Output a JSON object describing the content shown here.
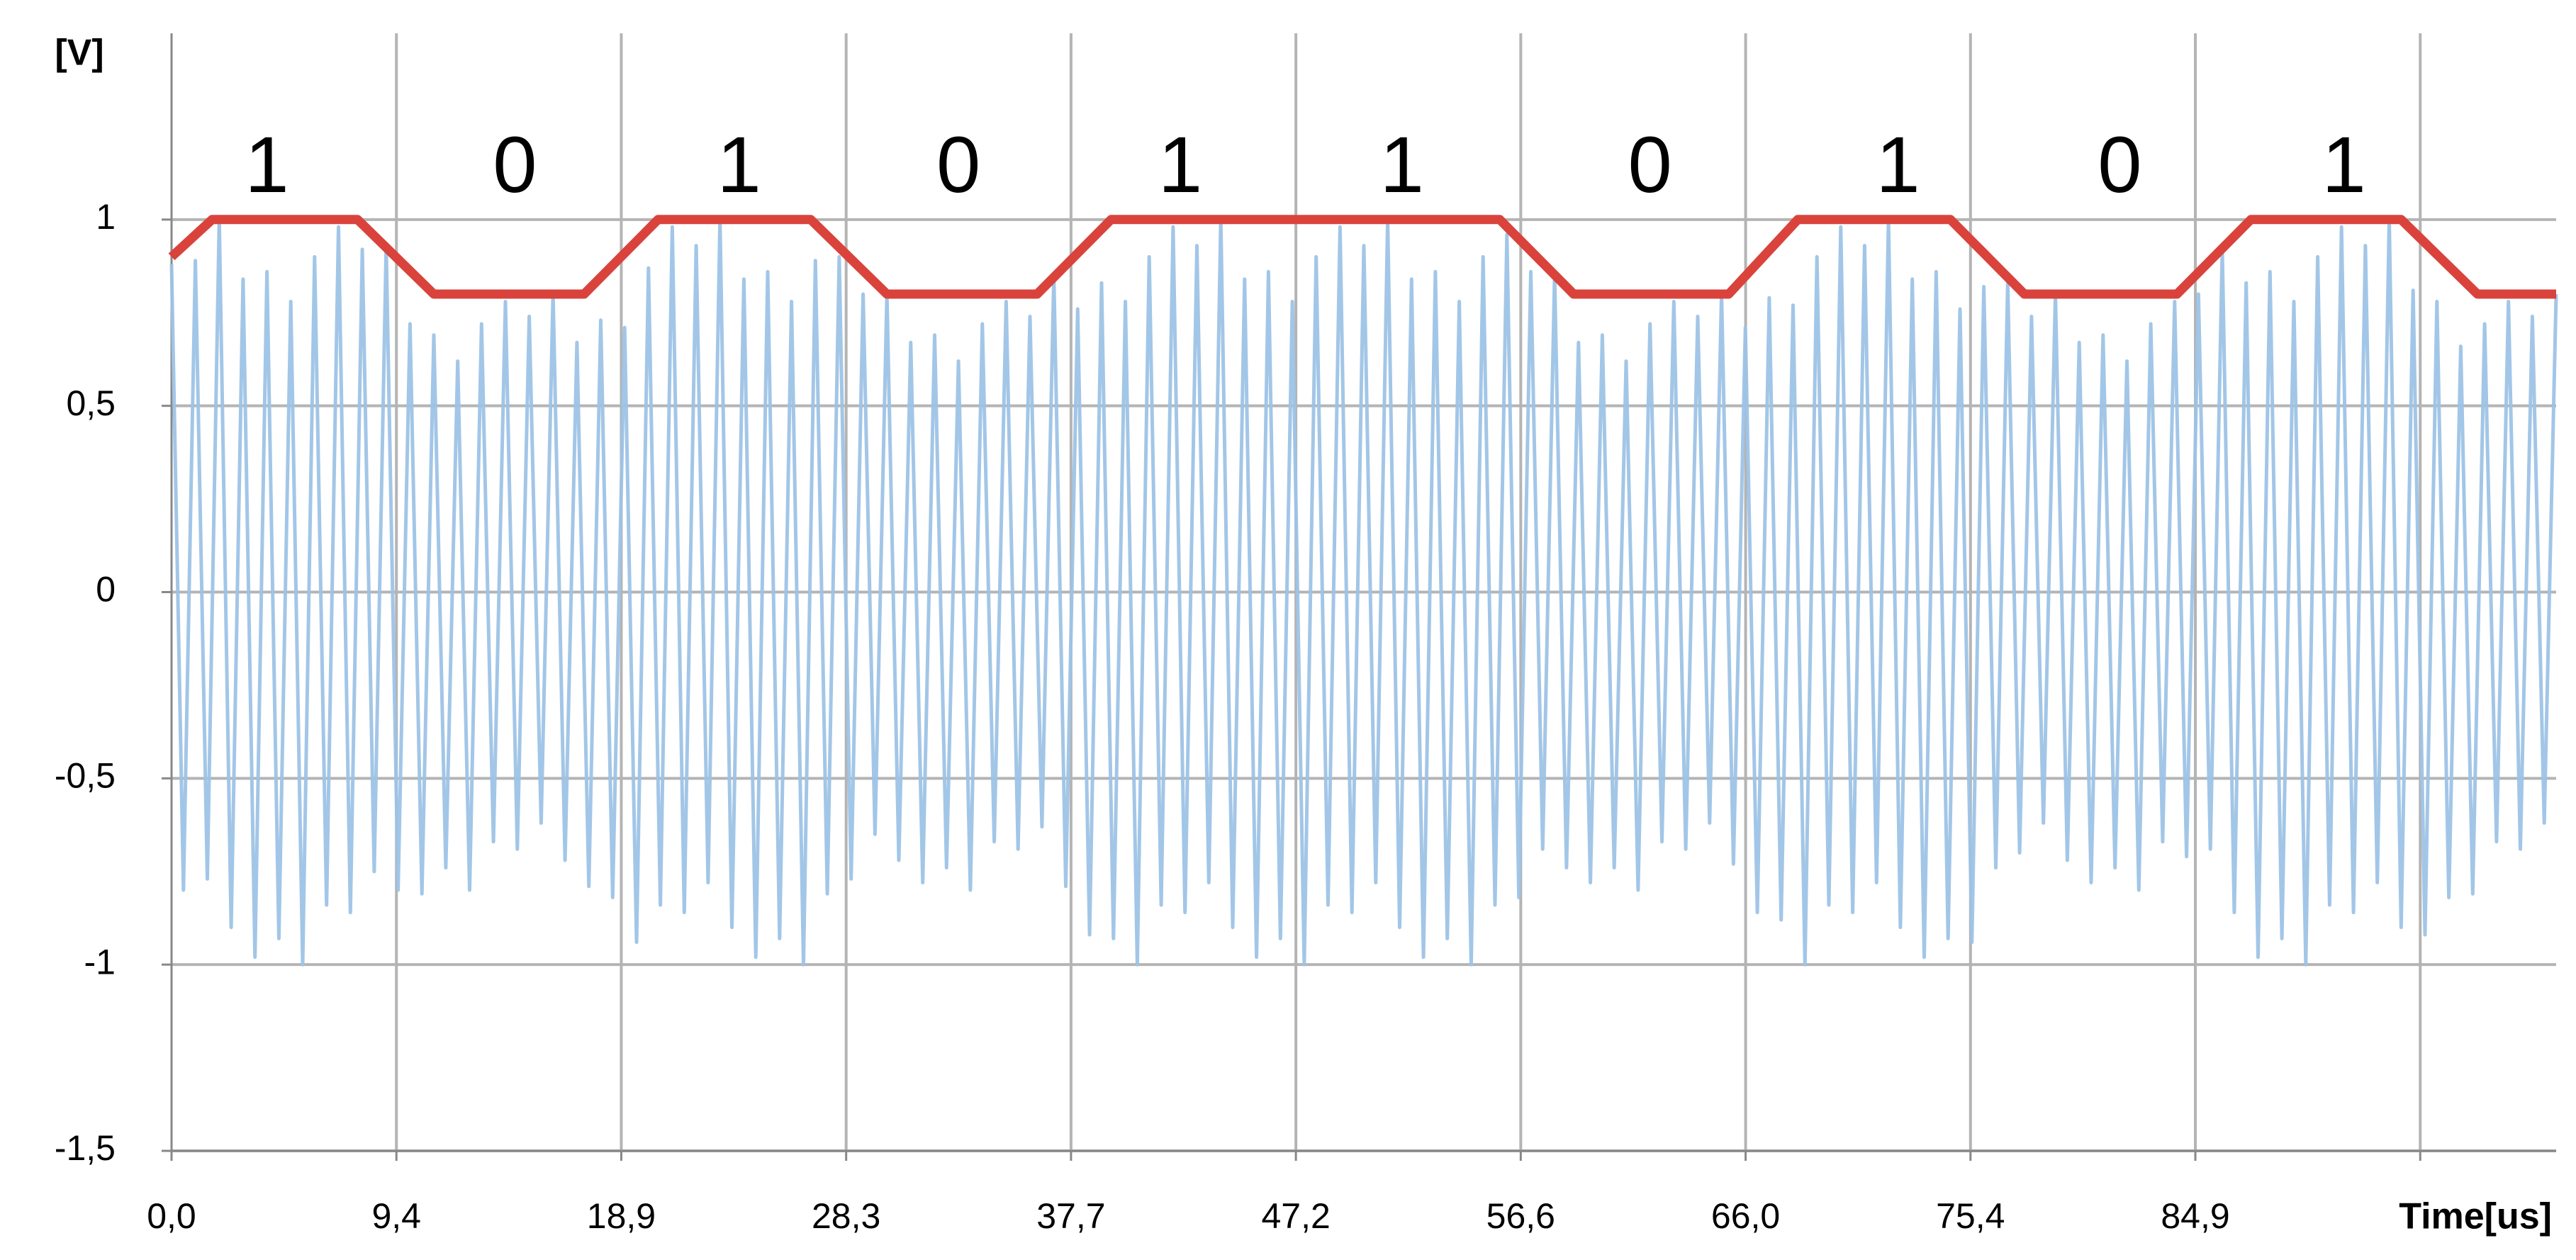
{
  "chart_data": {
    "type": "line",
    "ylabel": "[V]",
    "xlabel": "Time[us]",
    "xlim": [
      0,
      100
    ],
    "ylim": [
      -1.5,
      1.5
    ],
    "grid": true,
    "xticks": [
      {
        "value": 0,
        "label": "0,0"
      },
      {
        "value": 9.43,
        "label": "9,4"
      },
      {
        "value": 18.86,
        "label": "18,9"
      },
      {
        "value": 28.29,
        "label": "28,3"
      },
      {
        "value": 37.72,
        "label": "37,7"
      },
      {
        "value": 47.15,
        "label": "47,2"
      },
      {
        "value": 56.58,
        "label": "56,6"
      },
      {
        "value": 66.01,
        "label": "66,0"
      },
      {
        "value": 75.44,
        "label": "75,4"
      },
      {
        "value": 84.87,
        "label": "84,9"
      },
      {
        "value": 94.3,
        "label": null
      }
    ],
    "yticks": [
      {
        "value": -1.5,
        "label": "-1,5"
      },
      -1,
      {
        "value": -0.5,
        "label": "-0,5"
      },
      0,
      {
        "value": 0.5,
        "label": "0,5"
      },
      1
    ],
    "series": [
      {
        "color": "#9dc3e6",
        "x": [
          0,
          0.5,
          1,
          1.5,
          2,
          2.5,
          3,
          3.5,
          4,
          4.5,
          5,
          5.5,
          6,
          6.5,
          7,
          7.5,
          8,
          8.5,
          9,
          9.5,
          10,
          10.5,
          11,
          11.5,
          12,
          12.5,
          13,
          13.5,
          14,
          14.5,
          15,
          15.5,
          16,
          16.5,
          17,
          17.5,
          18,
          18.5,
          19,
          19.5,
          20,
          20.5,
          21,
          21.5,
          22,
          22.5,
          23,
          23.5,
          24,
          24.5,
          25,
          25.5,
          26,
          26.5,
          27,
          27.5,
          28,
          28.5,
          29,
          29.5,
          30,
          30.5,
          31,
          31.5,
          32,
          32.5,
          33,
          33.5,
          34,
          34.5,
          35,
          35.5,
          36,
          36.5,
          37,
          37.5,
          38,
          38.5,
          39,
          39.5,
          40,
          40.5,
          41,
          41.5,
          42,
          42.5,
          43,
          43.5,
          44,
          44.5,
          45,
          45.5,
          46,
          46.5,
          47,
          47.5,
          48,
          48.5,
          49,
          49.5,
          50,
          50.5,
          51,
          51.5,
          52,
          52.5,
          53,
          53.5,
          54,
          54.5,
          55,
          55.5,
          56,
          56.5,
          57,
          57.5,
          58,
          58.5,
          59,
          59.5,
          60,
          60.5,
          61,
          61.5,
          62,
          62.5,
          63,
          63.5,
          64,
          64.5,
          65,
          65.5,
          66,
          66.5,
          67,
          67.5,
          68,
          68.5,
          69,
          69.5,
          70,
          70.5,
          71,
          71.5,
          72,
          72.5,
          73,
          73.5,
          74,
          74.5,
          75,
          75.5,
          76,
          76.5,
          77,
          77.5,
          78,
          78.5,
          79,
          79.5,
          80,
          80.5,
          81,
          81.5,
          82,
          82.5,
          83,
          83.5,
          84,
          84.5,
          85,
          85.5,
          86,
          86.5,
          87,
          87.5,
          88,
          88.5,
          89,
          89.5,
          90,
          90.5,
          91,
          91.5,
          92,
          92.5,
          93,
          93.5,
          94,
          94.5,
          95,
          95.5,
          96,
          96.5,
          97,
          97.5,
          98,
          98.5,
          99,
          99.5,
          100
        ],
        "values": [
          0.88,
          -0.8,
          0.89,
          -0.77,
          1,
          -0.9,
          0.84,
          -0.98,
          0.86,
          -0.93,
          0.78,
          -1,
          0.9,
          -0.84,
          0.98,
          -0.86,
          0.92,
          -0.75,
          0.93,
          -0.8,
          0.72,
          -0.81,
          0.69,
          -0.74,
          0.62,
          -0.8,
          0.72,
          -0.67,
          0.78,
          -0.69,
          0.74,
          -0.62,
          0.8,
          -0.72,
          0.67,
          -0.79,
          0.73,
          -0.82,
          0.71,
          -0.94,
          0.87,
          -0.84,
          0.98,
          -0.86,
          0.93,
          -0.78,
          1,
          -0.9,
          0.84,
          -0.98,
          0.86,
          -0.93,
          0.78,
          -1,
          0.89,
          -0.81,
          0.9,
          -0.77,
          0.8,
          -0.65,
          0.8,
          -0.72,
          0.67,
          -0.78,
          0.69,
          -0.74,
          0.62,
          -0.8,
          0.72,
          -0.67,
          0.78,
          -0.69,
          0.74,
          -0.63,
          0.85,
          -0.79,
          0.76,
          -0.92,
          0.83,
          -0.93,
          0.78,
          -1,
          0.9,
          -0.84,
          0.98,
          -0.86,
          0.93,
          -0.78,
          1,
          -0.9,
          0.84,
          -0.98,
          0.86,
          -0.93,
          0.78,
          -1,
          0.9,
          -0.84,
          0.98,
          -0.86,
          0.93,
          -0.78,
          1,
          -0.9,
          0.84,
          -0.98,
          0.86,
          -0.93,
          0.78,
          -1,
          0.9,
          -0.84,
          0.96,
          -0.82,
          0.86,
          -0.69,
          0.85,
          -0.74,
          0.67,
          -0.78,
          0.69,
          -0.74,
          0.62,
          -0.8,
          0.72,
          -0.67,
          0.78,
          -0.69,
          0.74,
          -0.62,
          0.8,
          -0.73,
          0.71,
          -0.86,
          0.79,
          -0.88,
          0.77,
          -1,
          0.9,
          -0.84,
          0.98,
          -0.86,
          0.93,
          -0.78,
          1,
          -0.9,
          0.84,
          -0.98,
          0.86,
          -0.93,
          0.76,
          -0.94,
          0.82,
          -0.74,
          0.83,
          -0.7,
          0.74,
          -0.62,
          0.8,
          -0.72,
          0.67,
          -0.78,
          0.69,
          -0.74,
          0.62,
          -0.8,
          0.72,
          -0.67,
          0.78,
          -0.71,
          0.8,
          -0.69,
          0.92,
          -0.86,
          0.83,
          -0.98,
          0.86,
          -0.93,
          0.78,
          -1,
          0.9,
          -0.84,
          0.98,
          -0.86,
          0.93,
          -0.78,
          1,
          -0.9,
          0.81,
          -0.92,
          0.78,
          -0.82,
          0.66,
          -0.81,
          0.72,
          -0.67,
          0.78,
          -0.69,
          0.74,
          -0.62,
          0.8
        ]
      },
      {
        "color": "#d9433c",
        "x": [
          0,
          1.7,
          7.8,
          11,
          17.3,
          20.4,
          26.8,
          30,
          36.3,
          39.4,
          55.7,
          58.8,
          65.3,
          68.2,
          74.6,
          77.7,
          84.1,
          87.2,
          93.5,
          96.7,
          100
        ],
        "values": [
          0.9,
          1,
          1,
          0.8,
          0.8,
          1,
          1,
          0.8,
          0.8,
          1,
          1,
          0.8,
          0.8,
          1,
          1,
          0.8,
          0.8,
          1,
          1,
          0.8,
          0.8
        ]
      }
    ],
    "annotations": [
      {
        "text": "1",
        "x": 4.0,
        "y": 1.13
      },
      {
        "text": "0",
        "x": 14.4,
        "y": 1.13
      },
      {
        "text": "1",
        "x": 23.8,
        "y": 1.13
      },
      {
        "text": "0",
        "x": 33.0,
        "y": 1.13
      },
      {
        "text": "1",
        "x": 42.3,
        "y": 1.13
      },
      {
        "text": "1",
        "x": 51.6,
        "y": 1.13
      },
      {
        "text": "0",
        "x": 62.0,
        "y": 1.13
      },
      {
        "text": "1",
        "x": 72.4,
        "y": 1.13
      },
      {
        "text": "0",
        "x": 81.7,
        "y": 1.13
      },
      {
        "text": "1",
        "x": 91.1,
        "y": 1.13
      }
    ]
  }
}
